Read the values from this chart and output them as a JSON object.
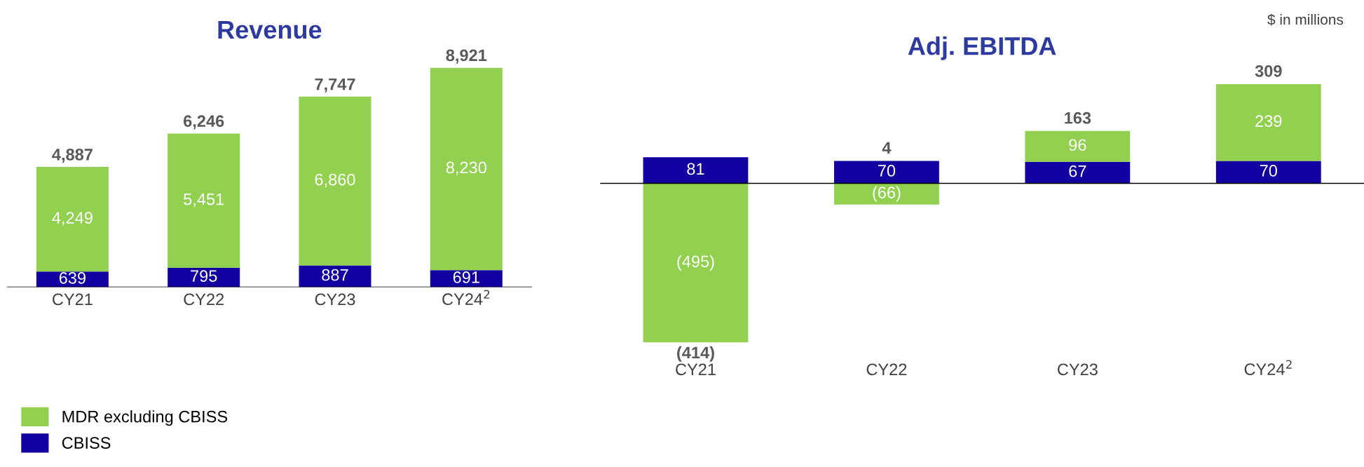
{
  "chart_data": [
    {
      "type": "bar",
      "title": "Revenue",
      "categories": [
        "CY21",
        "CY22",
        "CY23",
        "CY24$^{2}$"
      ],
      "stacked": true,
      "tick_labels": "x",
      "legend": "bottom left",
      "series": [
        {
          "name": "CBISS",
          "color": "#1200a0",
          "values": [
            639,
            795,
            887,
            691
          ],
          "value_labels": [
            "639",
            "795",
            "887",
            "691"
          ]
        },
        {
          "name": "MDR excluding CBISS",
          "color": "#92d050",
          "values": [
            4249,
            5451,
            6860,
            8230
          ],
          "value_labels": [
            "4,249",
            "5,451",
            "6,860",
            "8,230"
          ]
        }
      ],
      "totals": [
        "4,887",
        "6,246",
        "7,747",
        "8,921"
      ]
    },
    {
      "type": "bar",
      "title": "Adj. EBITDA",
      "categories": [
        "CY21",
        "CY22",
        "CY23",
        "CY24$^{2}$"
      ],
      "stacked": true,
      "tick_labels": "x",
      "series": [
        {
          "color": "#1200a0",
          "values": [
            81,
            70,
            67,
            70
          ],
          "value_labels": [
            "81",
            "70",
            "67",
            "70"
          ]
        },
        {
          "color": "#92d050",
          "values": [
            -495,
            -66,
            96,
            239
          ],
          "value_labels": [
            "(495)",
            "(66)",
            "96",
            "239"
          ]
        }
      ],
      "totals": [
        "(414)",
        "4",
        "163",
        "309"
      ],
      "annotations": [
        "$ in millions"
      ]
    }
  ]
}
